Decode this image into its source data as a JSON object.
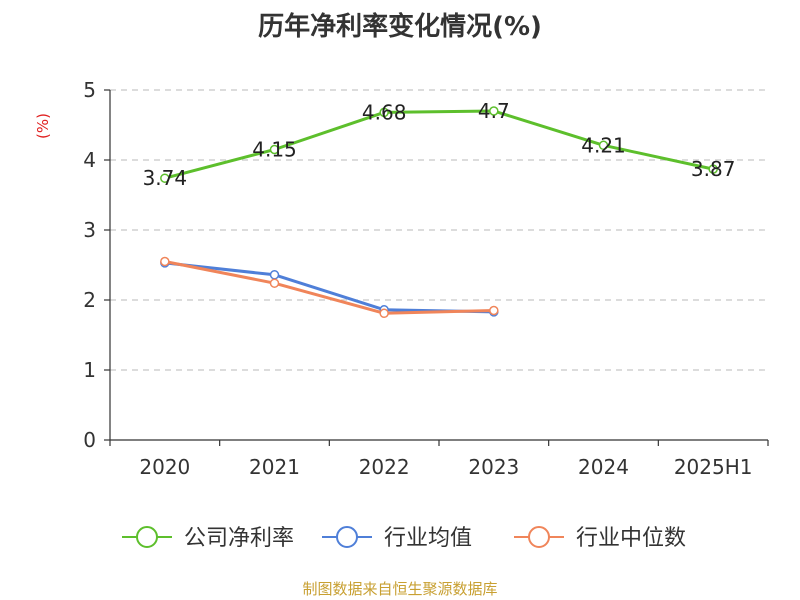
{
  "chart_data": {
    "type": "line",
    "title": "历年净利率变化情况(%)",
    "ylabel": "(%)",
    "xlabel": "",
    "categories": [
      "2020",
      "2021",
      "2022",
      "2023",
      "2024",
      "2025H1"
    ],
    "ylim": [
      0,
      5
    ],
    "yticks": [
      "0",
      "1",
      "2",
      "3",
      "4",
      "5"
    ],
    "grid": true,
    "legend_position": "bottom",
    "series": [
      {
        "name": "公司净利率",
        "color": "#5dbf2c",
        "values": [
          3.74,
          4.15,
          4.68,
          4.7,
          4.21,
          3.87
        ],
        "labels": [
          "3.74",
          "4.15",
          "4.68",
          "4.7",
          "4.21",
          "3.87"
        ]
      },
      {
        "name": "行业均值",
        "color": "#4f7fd8",
        "values": [
          2.53,
          2.36,
          1.86,
          1.83,
          null,
          null
        ]
      },
      {
        "name": "行业中位数",
        "color": "#f0855a",
        "values": [
          2.55,
          2.24,
          1.81,
          1.85,
          null,
          null
        ]
      }
    ]
  },
  "source": "制图数据来自恒生聚源数据库"
}
